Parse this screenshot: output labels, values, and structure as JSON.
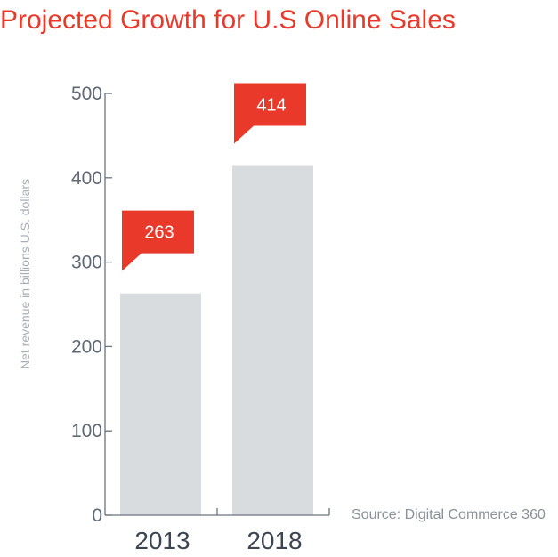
{
  "colors": {
    "title": "#e8392a",
    "bar": "#d9dcdf",
    "callout": "#e8392a",
    "axis": "#6b737c",
    "tick_text": "#5f6873",
    "source_text": "#8a9198"
  },
  "chart_data": {
    "type": "bar",
    "title": "Projected Growth for U.S Online Sales",
    "ylabel": "Net revenue in billions U.S. dollars",
    "xlabel": "",
    "categories": [
      "2013",
      "2018"
    ],
    "values": [
      263,
      414
    ],
    "value_labels": [
      "263",
      "414"
    ],
    "ylim": [
      0,
      500
    ],
    "yticks": [
      0,
      100,
      200,
      300,
      400,
      500
    ],
    "ytick_labels": [
      "0",
      "100",
      "200",
      "300",
      "400",
      "500"
    ],
    "grid": false,
    "legend": "none",
    "source": "Source: Digital Commerce 360"
  }
}
